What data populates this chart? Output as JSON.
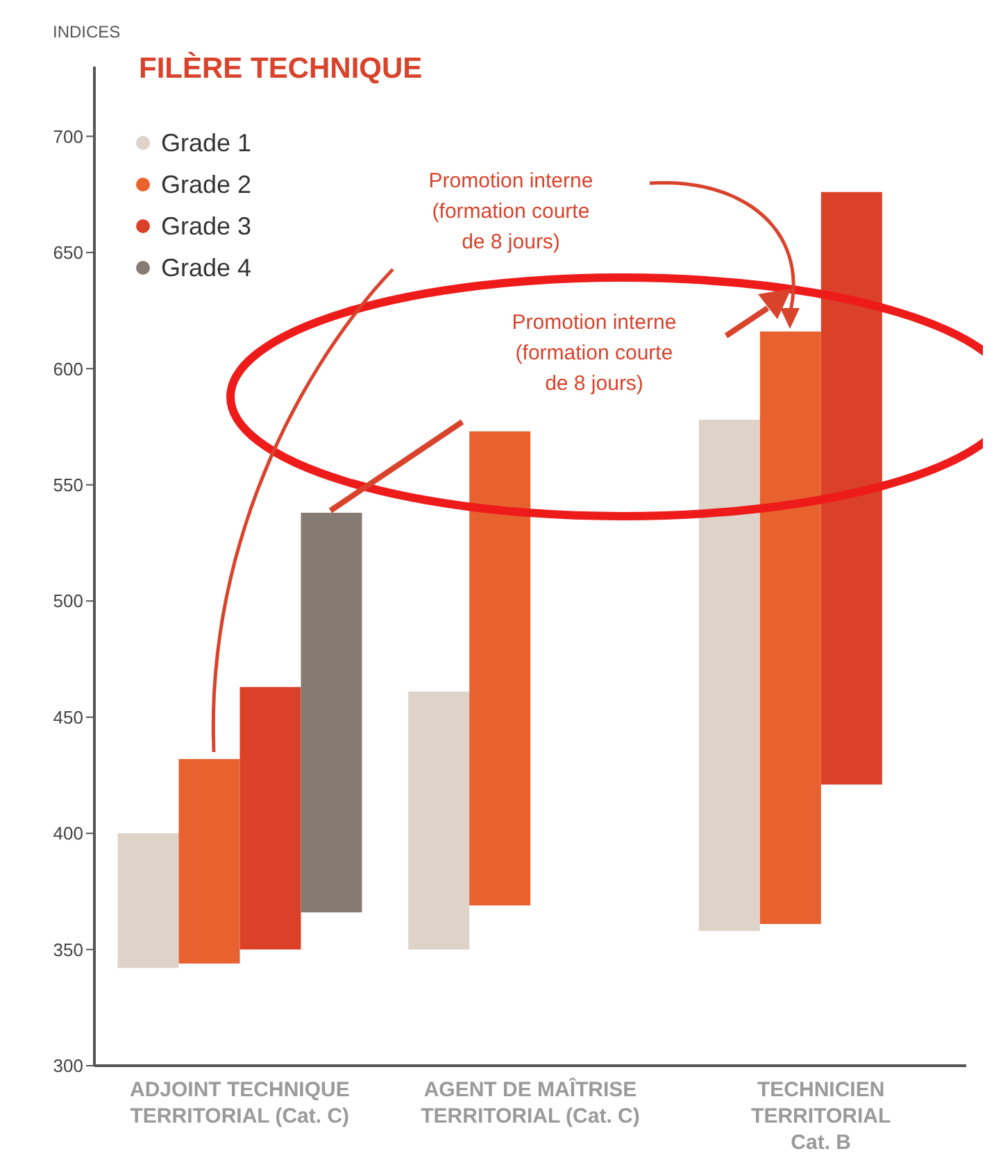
{
  "chart_data": {
    "type": "bar",
    "title": "FILÈRE TECHNIQUE",
    "ylabel": "INDICES",
    "categories": [
      "ADJOINT TECHNIQUE\nTERRITORIAL (Cat. C)",
      "AGENT DE MAÎTRISE\nTERRITORIAL (Cat. C)",
      "TECHNICIEN\nTERRITORIAL\nCat. B"
    ],
    "series": [
      {
        "name": "Grade 1",
        "color": "#ddd3c9",
        "base": [
          342,
          350,
          358
        ],
        "values": [
          58,
          111,
          220
        ]
      },
      {
        "name": "Grade 2",
        "color": "#e8622f",
        "base": [
          344,
          369,
          361
        ],
        "values": [
          88,
          204,
          255
        ]
      },
      {
        "name": "Grade 3",
        "color": "#db4128",
        "base": [
          350,
          null,
          421
        ],
        "values": [
          113,
          null,
          255
        ]
      },
      {
        "name": "Grade 4",
        "color": "#857b73",
        "base": [
          366,
          null,
          null
        ],
        "values": [
          172,
          null,
          null
        ]
      }
    ],
    "ylim": [
      300,
      730
    ],
    "yticks": [
      300,
      350,
      400,
      450,
      500,
      550,
      600,
      650,
      700
    ],
    "legend": "top left",
    "annotations": [
      "Promotion interne\n(formation courte\nde 8 jours)",
      "Promotion interne\n(formation courte\nde 8 jours)"
    ]
  }
}
